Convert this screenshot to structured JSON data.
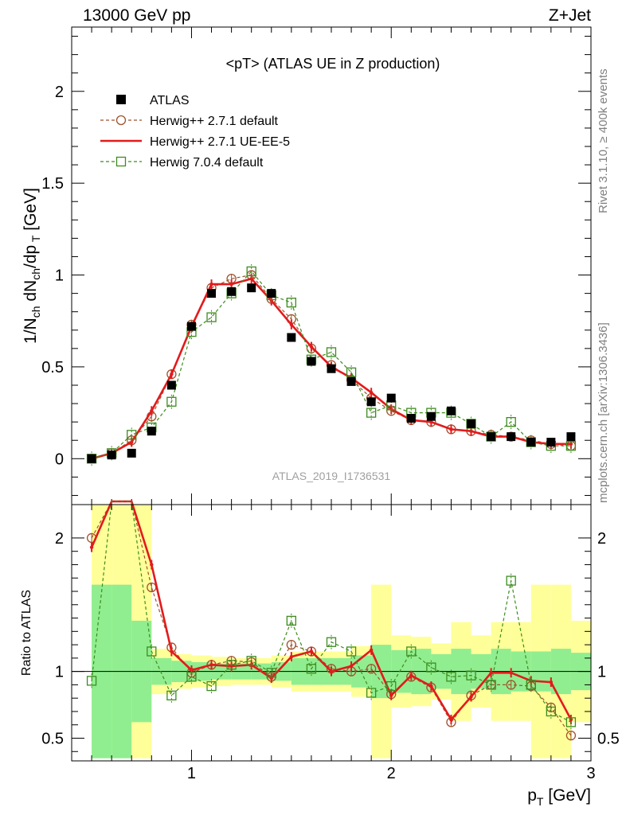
{
  "header": {
    "left": "13000 GeV pp",
    "right": "Z+Jet"
  },
  "side_labels": {
    "rivet": "Rivet 3.1.10, ≥ 400k events",
    "mcplots": "mcplots.cern.ch [arXiv:1306.3436]"
  },
  "analysis_id": "ATLAS_2019_I1736531",
  "chart_data": [
    {
      "type": "line",
      "panel": "main",
      "title": "<pT> (ATLAS UE in Z production)",
      "ylabel": "1/N_ch dN_ch/dp_T [GeV]",
      "xlabel": "p_T [GeV]",
      "xlim": [
        0.4,
        3.0
      ],
      "ylim": [
        -0.25,
        2.35
      ],
      "x_ticks": [
        "1",
        "2",
        "3"
      ],
      "y_ticks": [
        "0",
        "0.5",
        "1",
        "1.5",
        "2"
      ],
      "legend_position": "top-left",
      "x": [
        0.5,
        0.6,
        0.7,
        0.8,
        0.9,
        1.0,
        1.1,
        1.2,
        1.3,
        1.4,
        1.5,
        1.6,
        1.7,
        1.8,
        1.9,
        2.0,
        2.1,
        2.2,
        2.3,
        2.4,
        2.5,
        2.6,
        2.7,
        2.8,
        2.9
      ],
      "series": [
        {
          "name": "ATLAS",
          "style": "data",
          "color": "#000000",
          "values": [
            0.0,
            0.02,
            0.03,
            0.15,
            0.4,
            0.72,
            0.9,
            0.91,
            0.93,
            0.9,
            0.66,
            0.53,
            0.49,
            0.42,
            0.31,
            0.33,
            0.22,
            0.23,
            0.26,
            0.19,
            0.12,
            0.12,
            0.09,
            0.09,
            0.12
          ]
        },
        {
          "name": "Herwig++ 2.7.1 default",
          "style": "circle-dashed",
          "color": "#a0522d",
          "values": [
            0.0,
            0.03,
            0.1,
            0.23,
            0.46,
            0.73,
            0.93,
            0.98,
            1.0,
            0.87,
            0.76,
            0.6,
            0.51,
            0.43,
            0.33,
            0.26,
            0.21,
            0.2,
            0.16,
            0.15,
            0.13,
            0.12,
            0.1,
            0.08,
            0.07
          ]
        },
        {
          "name": "Herwig++ 2.7.1 UE-EE-5",
          "style": "solid",
          "color": "#e31a1c",
          "values": [
            0.0,
            0.03,
            0.09,
            0.26,
            0.46,
            0.72,
            0.95,
            0.95,
            0.98,
            0.86,
            0.73,
            0.61,
            0.5,
            0.44,
            0.36,
            0.27,
            0.21,
            0.2,
            0.16,
            0.15,
            0.12,
            0.12,
            0.09,
            0.08,
            0.08
          ]
        },
        {
          "name": "Herwig 7.0.4 default",
          "style": "square-dashed",
          "color": "#3c8c1e",
          "values": [
            0.0,
            0.03,
            0.13,
            0.17,
            0.31,
            0.69,
            0.77,
            0.9,
            1.02,
            0.89,
            0.85,
            0.54,
            0.58,
            0.47,
            0.25,
            0.29,
            0.25,
            0.25,
            0.25,
            0.19,
            0.12,
            0.2,
            0.09,
            0.07,
            0.07
          ]
        }
      ]
    },
    {
      "type": "line",
      "panel": "ratio",
      "ylabel": "Ratio to ATLAS",
      "xlabel": "p_T [GeV]",
      "xlim": [
        0.4,
        3.0
      ],
      "ylim": [
        0.33,
        2.25
      ],
      "x_ticks": [
        "1",
        "2",
        "3"
      ],
      "y_ticks": [
        "0.5",
        "1",
        "2"
      ],
      "x": [
        0.5,
        0.6,
        0.7,
        0.8,
        0.9,
        1.0,
        1.1,
        1.2,
        1.3,
        1.4,
        1.5,
        1.6,
        1.7,
        1.8,
        1.9,
        2.0,
        2.1,
        2.2,
        2.3,
        2.4,
        2.5,
        2.6,
        2.7,
        2.8,
        2.9
      ],
      "bands": {
        "bins": [
          0.55,
          0.65,
          0.75,
          0.85,
          0.95,
          1.05,
          1.15,
          1.25,
          1.35,
          1.45,
          1.55,
          1.65,
          1.75,
          1.85,
          1.95,
          2.05,
          2.15,
          2.25,
          2.35,
          2.45,
          2.55,
          2.65,
          2.75,
          2.85,
          2.95
        ],
        "green_lo": [
          0.35,
          0.35,
          0.62,
          0.9,
          0.92,
          0.93,
          0.94,
          0.94,
          0.94,
          0.93,
          0.9,
          0.9,
          0.9,
          0.88,
          0.8,
          0.84,
          0.83,
          0.87,
          0.83,
          0.87,
          0.83,
          0.85,
          0.85,
          0.83,
          0.86
        ],
        "green_hi": [
          1.65,
          1.65,
          1.38,
          1.1,
          1.08,
          1.07,
          1.06,
          1.06,
          1.06,
          1.07,
          1.1,
          1.1,
          1.1,
          1.12,
          1.2,
          1.16,
          1.17,
          1.13,
          1.17,
          1.13,
          1.17,
          1.15,
          1.15,
          1.17,
          1.14
        ],
        "yellow_lo": [
          0.35,
          0.35,
          0.35,
          0.83,
          0.87,
          0.88,
          0.89,
          0.9,
          0.9,
          0.88,
          0.85,
          0.85,
          0.85,
          0.81,
          0.35,
          0.73,
          0.74,
          0.79,
          0.63,
          0.73,
          0.63,
          0.63,
          0.35,
          0.35,
          0.62
        ],
        "yellow_hi": [
          2.25,
          2.25,
          2.25,
          1.17,
          1.13,
          1.12,
          1.11,
          1.1,
          1.1,
          1.12,
          1.15,
          1.15,
          1.15,
          1.19,
          1.65,
          1.27,
          1.26,
          1.21,
          1.37,
          1.27,
          1.37,
          1.37,
          1.65,
          1.65,
          1.38
        ]
      },
      "series": [
        {
          "name": "Herwig++ 2.7.1 default",
          "style": "circle-dashed",
          "color": "#a0522d",
          "values": [
            2.0,
            2.4,
            2.4,
            1.63,
            1.18,
            0.99,
            1.05,
            1.08,
            1.07,
            0.96,
            1.2,
            1.15,
            1.02,
            1.0,
            1.02,
            0.83,
            0.96,
            0.88,
            0.62,
            0.82,
            0.9,
            0.9,
            0.89,
            0.73,
            0.52
          ]
        },
        {
          "name": "Herwig++ 2.7.1 UE-EE-5",
          "style": "solid",
          "color": "#e31a1c",
          "values": [
            1.93,
            2.4,
            2.4,
            1.8,
            1.15,
            1.01,
            1.05,
            1.04,
            1.05,
            0.95,
            1.11,
            1.15,
            1.0,
            1.04,
            1.16,
            0.82,
            0.97,
            0.89,
            0.64,
            0.81,
            0.99,
            0.99,
            0.93,
            0.92,
            0.64
          ]
        },
        {
          "name": "Herwig 7.0.4 default",
          "style": "square-dashed",
          "color": "#3c8c1e",
          "values": [
            0.93,
            2.4,
            2.4,
            1.15,
            0.82,
            0.96,
            0.89,
            1.05,
            1.08,
            0.99,
            1.38,
            1.02,
            1.22,
            1.15,
            0.84,
            0.89,
            1.15,
            1.03,
            0.96,
            0.97,
            0.9,
            1.68,
            0.9,
            0.7,
            0.62
          ]
        }
      ]
    }
  ]
}
